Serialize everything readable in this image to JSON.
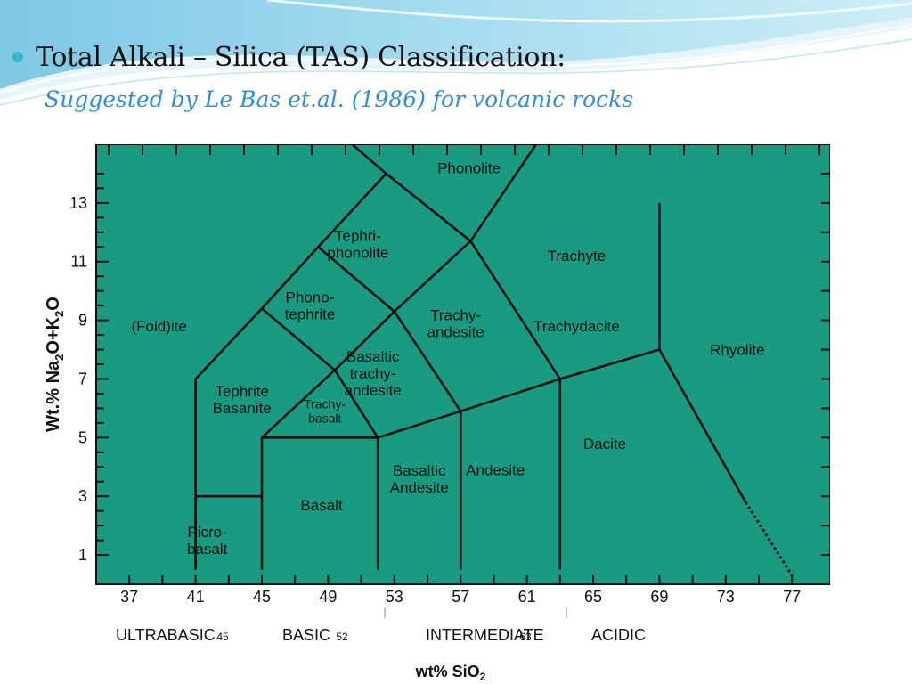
{
  "slide": {
    "title": "Total Alkali – Silica (TAS) Classification:",
    "subtitle": "Suggested by Le Bas et.al. (1986) for volcanic rocks"
  },
  "colors": {
    "plot_background": "#1a9a80",
    "line": "#111111",
    "bullet": "#2fb8c8",
    "subtitle": "#2e8fd6"
  },
  "chart_data": {
    "type": "diagram",
    "ylabel_parts": [
      "Wt.% Na",
      "2",
      "O+K",
      "2",
      "O"
    ],
    "xlabel_parts": [
      "wt% SiO",
      "2"
    ],
    "x_ticks": [
      "37",
      "41",
      "45",
      "49",
      "53",
      "57",
      "61",
      "65",
      "69",
      "73",
      "77"
    ],
    "y_ticks": [
      "13",
      "11",
      "9",
      "7",
      "5",
      "3",
      "1"
    ],
    "xlim": [
      35,
      79.3
    ],
    "ylim": [
      0,
      15
    ],
    "classes": [
      {
        "label": "ULTRABASIC"
      },
      {
        "label": "45",
        "small": true
      },
      {
        "label": "BASIC"
      },
      {
        "label": "52",
        "small": true
      },
      {
        "label": "INTERMEDIATE"
      },
      {
        "label": "63",
        "small": true
      },
      {
        "label": "ACIDIC"
      }
    ],
    "fields": [
      {
        "lines": [
          "Phonolite"
        ],
        "x": 57.5,
        "y": 14.2
      },
      {
        "lines": [
          "Tephri-",
          "phonolite"
        ],
        "x": 50.8,
        "y": 11.6
      },
      {
        "lines": [
          "Trachyte"
        ],
        "x": 64.0,
        "y": 11.2
      },
      {
        "lines": [
          "Phono-",
          "tephrite"
        ],
        "x": 47.9,
        "y": 9.5
      },
      {
        "lines": [
          "(Foid)ite"
        ],
        "x": 38.8,
        "y": 8.8
      },
      {
        "lines": [
          "Trachy-",
          "andesite"
        ],
        "x": 56.7,
        "y": 8.9
      },
      {
        "lines": [
          "Trachydacite"
        ],
        "x": 64.0,
        "y": 8.8
      },
      {
        "lines": [
          "Rhyolite"
        ],
        "x": 73.7,
        "y": 8.0
      },
      {
        "lines": [
          "Basaltic",
          "trachy-",
          "andesite"
        ],
        "x": 51.7,
        "y": 7.2
      },
      {
        "lines": [
          "Tephrite",
          "Basanite"
        ],
        "x": 43.8,
        "y": 6.3
      },
      {
        "lines": [
          "Trachy-",
          "basalt"
        ],
        "x": 48.8,
        "y": 5.9,
        "small": true
      },
      {
        "lines": [
          "Dacite"
        ],
        "x": 65.7,
        "y": 4.8
      },
      {
        "lines": [
          "Andesite"
        ],
        "x": 59.1,
        "y": 3.9
      },
      {
        "lines": [
          "Basaltic",
          "Andesite"
        ],
        "x": 54.5,
        "y": 3.6
      },
      {
        "lines": [
          "Basalt"
        ],
        "x": 48.6,
        "y": 2.7
      },
      {
        "lines": [
          "Picro-",
          "basalt"
        ],
        "x": 41.7,
        "y": 1.5
      }
    ],
    "boundaries": [
      [
        [
          41,
          0.5
        ],
        [
          41,
          7
        ],
        [
          45,
          9.4
        ],
        [
          48.4,
          11.5
        ],
        [
          52.5,
          14
        ],
        [
          48.4,
          16
        ]
      ],
      [
        [
          41,
          3
        ],
        [
          45,
          3
        ]
      ],
      [
        [
          45,
          0.5
        ],
        [
          45,
          5
        ],
        [
          49.4,
          7.3
        ],
        [
          53,
          9.3
        ],
        [
          57.6,
          11.7
        ],
        [
          63,
          16.2
        ]
      ],
      [
        [
          45,
          5
        ],
        [
          52,
          5
        ],
        [
          57,
          5.9
        ],
        [
          63,
          7
        ],
        [
          69,
          8
        ]
      ],
      [
        [
          52,
          0.5
        ],
        [
          52,
          5
        ]
      ],
      [
        [
          57,
          0.5
        ],
        [
          57,
          5.9
        ],
        [
          53,
          9.3
        ]
      ],
      [
        [
          63,
          0.5
        ],
        [
          63,
          7
        ],
        [
          57.6,
          11.7
        ],
        [
          52.5,
          14
        ]
      ],
      [
        [
          69,
          8
        ],
        [
          69,
          13
        ]
      ],
      [
        [
          45,
          9.4
        ],
        [
          49.4,
          7.3
        ],
        [
          52,
          5
        ]
      ],
      [
        [
          48.4,
          11.5
        ],
        [
          53,
          9.3
        ]
      ],
      [
        [
          69,
          8
        ],
        [
          74.2,
          2.8
        ]
      ]
    ],
    "dashed_boundaries": [
      [
        [
          74.2,
          2.8
        ],
        [
          77,
          0.3
        ]
      ]
    ]
  }
}
